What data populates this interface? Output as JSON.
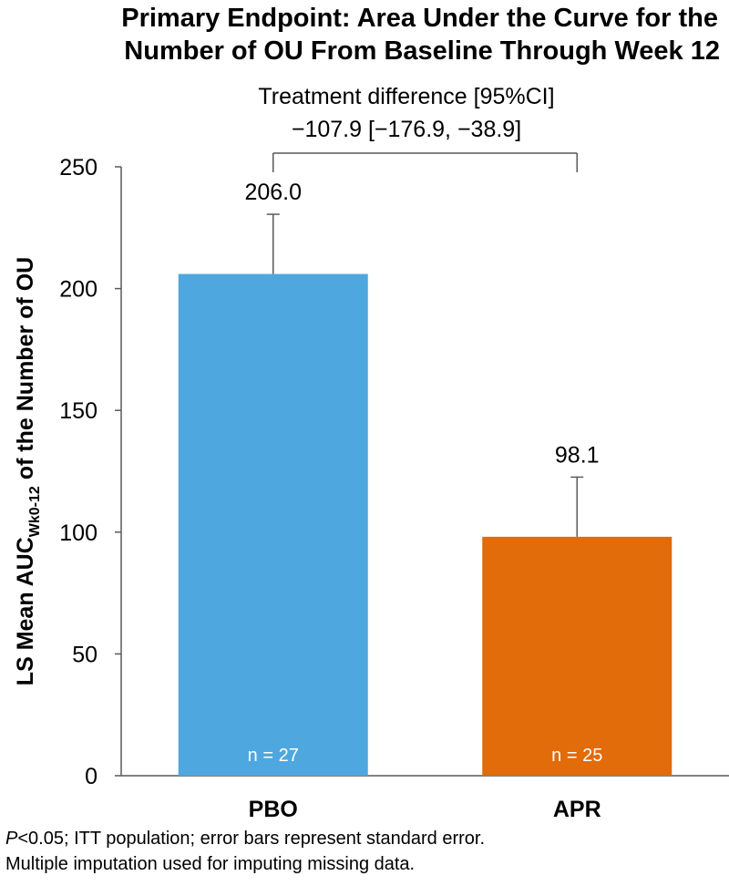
{
  "title": {
    "line1": "Primary Endpoint: Area Under the Curve for the",
    "line2": "Number of OU From Baseline Through Week 12"
  },
  "comparison": {
    "label": "Treatment difference [95%CI]",
    "value": "−107.9 [−176.9, −38.9]"
  },
  "footnote": {
    "p_symbol": "P",
    "line1_rest": "<0.05; ITT population; error bars represent standard error.",
    "line2": "Multiple imputation used for imputing missing data."
  },
  "chart_data": {
    "type": "bar",
    "title": "Primary Endpoint: Area Under the Curve for the Number of OU From Baseline Through Week 12",
    "ylabel": {
      "main": "LS Mean AUC",
      "subscript": "Wk0-12",
      "suffix": " of the Number of OU"
    },
    "xlabel": "",
    "ylim": [
      0,
      250
    ],
    "yticks": [
      0,
      50,
      100,
      150,
      200,
      250
    ],
    "categories": [
      "PBO",
      "APR"
    ],
    "values": [
      206.0,
      98.1
    ],
    "value_labels": [
      "206.0",
      "98.1"
    ],
    "error_upper": [
      230.5,
      122.6
    ],
    "n_labels": [
      "n = 27",
      "n = 25"
    ],
    "colors": [
      "#4fa7e0",
      "#e26b0a"
    ],
    "grid": false,
    "legend": "none"
  }
}
